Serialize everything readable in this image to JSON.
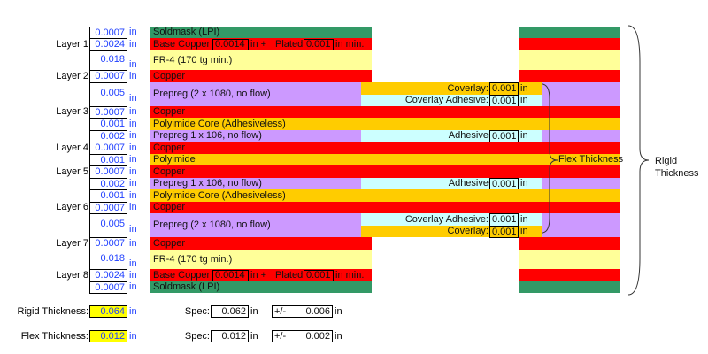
{
  "colors": {
    "soldmask": "#339966",
    "copper": "#ff0000",
    "fr4": "#ffff99",
    "prepreg": "#cc99ff",
    "polyimide": "#ffcc00",
    "adhesive": "#ccffff",
    "value_text": "#1f3fff",
    "highlight": "#ffff00"
  },
  "stackup": {
    "rows": [
      {
        "layer": "",
        "thickness": "0.0007",
        "unit": "in",
        "material": "Soldmask (LPI)",
        "type": "soldmask",
        "region": "rigid"
      },
      {
        "layer": "Layer 1",
        "thickness": "0.0024",
        "unit": "in",
        "type": "copper",
        "region": "rigid",
        "base_copper": {
          "label": "Base Copper",
          "base_value": "0.0014",
          "base_unit": "in +",
          "plated_label": "Plated",
          "plated_value": "0.001",
          "plated_unit": "in min."
        }
      },
      {
        "layer": "",
        "thickness": "0.018",
        "unit": "in",
        "material": "FR-4 (170 tg min.)",
        "type": "fr4",
        "region": "rigid"
      },
      {
        "layer": "Layer 2",
        "thickness": "0.0007",
        "unit": "in",
        "material": "Copper",
        "type": "copper",
        "region": "rigid"
      },
      {
        "layer": "",
        "thickness": "0.005",
        "unit": "in",
        "material": "Prepreg (2 x 1080, no flow)",
        "type": "prepreg",
        "region": "flex-split",
        "flex": [
          {
            "label": "Coverlay:",
            "value": "0.001",
            "unit": "in",
            "type": "polyimide"
          },
          {
            "label": "Coverlay Adhesive:",
            "value": "0.001",
            "unit": "in",
            "type": "adhesive"
          }
        ]
      },
      {
        "layer": "Layer 3",
        "thickness": "0.0007",
        "unit": "in",
        "material": "Copper",
        "type": "copper",
        "region": "full"
      },
      {
        "layer": "",
        "thickness": "0.001",
        "unit": "in",
        "material": "Polyimide Core (Adhesiveless)",
        "type": "polyimide",
        "region": "full"
      },
      {
        "layer": "",
        "thickness": "0.002",
        "unit": "in",
        "material": "Prepreg 1 x 106, no flow)",
        "type": "prepreg",
        "region": "flex-adh",
        "flex": [
          {
            "label": "Adhesive",
            "value": "0.001",
            "unit": "in",
            "type": "adhesive"
          }
        ]
      },
      {
        "layer": "Layer 4",
        "thickness": "0.0007",
        "unit": "in",
        "material": "Copper",
        "type": "copper",
        "region": "full"
      },
      {
        "layer": "",
        "thickness": "0.001",
        "unit": "in",
        "material": "Polyimide",
        "type": "polyimide",
        "region": "full"
      },
      {
        "layer": "Layer 5",
        "thickness": "0.0007",
        "unit": "in",
        "material": "Copper",
        "type": "copper",
        "region": "full"
      },
      {
        "layer": "",
        "thickness": "0.002",
        "unit": "in",
        "material": "Prepreg 1 x 106, no flow)",
        "type": "prepreg",
        "region": "flex-adh",
        "flex": [
          {
            "label": "Adhesive",
            "value": "0.001",
            "unit": "in",
            "type": "adhesive"
          }
        ]
      },
      {
        "layer": "",
        "thickness": "0.001",
        "unit": "in",
        "material": "Polyimide Core (Adhesiveless)",
        "type": "polyimide",
        "region": "full"
      },
      {
        "layer": "Layer 6",
        "thickness": "0.0007",
        "unit": "in",
        "material": "Copper",
        "type": "copper",
        "region": "full"
      },
      {
        "layer": "",
        "thickness": "0.005",
        "unit": "in",
        "material": "Prepreg (2 x 1080, no flow)",
        "type": "prepreg",
        "region": "flex-split",
        "flex": [
          {
            "label": "Coverlay Adhesive:",
            "value": "0.001",
            "unit": "in",
            "type": "adhesive"
          },
          {
            "label": "Coverlay:",
            "value": "0.001",
            "unit": "in",
            "type": "polyimide"
          }
        ]
      },
      {
        "layer": "Layer 7",
        "thickness": "0.0007",
        "unit": "in",
        "material": "Copper",
        "type": "copper",
        "region": "rigid"
      },
      {
        "layer": "",
        "thickness": "0.018",
        "unit": "in",
        "material": "FR-4 (170 tg min.)",
        "type": "fr4",
        "region": "rigid"
      },
      {
        "layer": "Layer 8",
        "thickness": "0.0024",
        "unit": "in",
        "type": "copper",
        "region": "rigid",
        "base_copper": {
          "label": "Base Copper",
          "base_value": "0.0014",
          "base_unit": "in +",
          "plated_label": "Plated",
          "plated_value": "0.001",
          "plated_unit": "in min."
        }
      },
      {
        "layer": "",
        "thickness": "0.0007",
        "unit": "in",
        "material": "Soldmask (LPI)",
        "type": "soldmask",
        "region": "rigid"
      }
    ]
  },
  "annotations": {
    "flex_thickness": "Flex Thickness",
    "rigid_thickness_line1": "Rigid",
    "rigid_thickness_line2": "Thickness"
  },
  "summary": {
    "rigid": {
      "label": "Rigid Thickness:",
      "value": "0.064",
      "unit": "in",
      "spec_label": "Spec:",
      "spec_value": "0.062",
      "spec_unit": "in",
      "tol_label": "+/-",
      "tol_value": "0.006",
      "tol_unit": "in"
    },
    "flex": {
      "label": "Flex Thickness:",
      "value": "0.012",
      "unit": "in",
      "spec_label": "Spec:",
      "spec_value": "0.012",
      "spec_unit": "in",
      "tol_label": "+/-",
      "tol_value": "0.002",
      "tol_unit": "in"
    }
  }
}
